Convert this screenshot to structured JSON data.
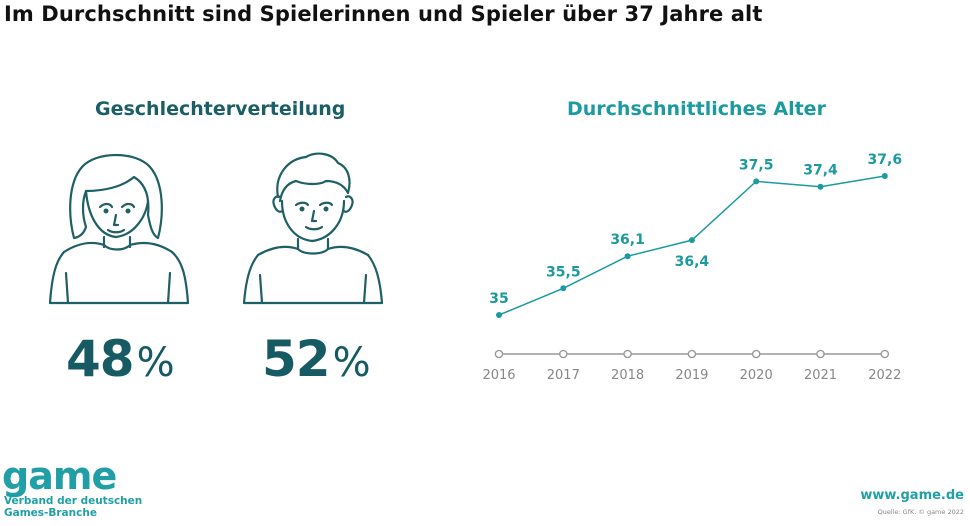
{
  "title": "Im Durchschnitt sind Spielerinnen und Spieler über 37 Jahre alt",
  "gender": {
    "heading": "Geschlechterverteilung",
    "female_value": "48",
    "male_value": "52",
    "percent_sign": "%",
    "icon_color": "#1f5f66"
  },
  "age": {
    "heading": "Durchschnittliches Alter"
  },
  "chart_data": {
    "type": "line",
    "title": "Durchschnittliches Alter",
    "x": [
      "2016",
      "2017",
      "2018",
      "2019",
      "2020",
      "2021",
      "2022"
    ],
    "series": [
      {
        "values": [
          35,
          35.5,
          36.1,
          36.4,
          37.5,
          37.4,
          37.6
        ],
        "labels": [
          "35",
          "35,5",
          "36,1",
          "36,4",
          "37,5",
          "37,4",
          "37,6"
        ]
      }
    ],
    "ylim": [
      35,
      37.6
    ],
    "grid": false,
    "line_color": "#1b9aa0",
    "axis_color": "#999999"
  },
  "footer": {
    "logo": "game",
    "logo_subtitle_1": "Verband der deutschen",
    "logo_subtitle_2": "Games-Branche",
    "website": "www.game.de",
    "source": "Quelle: GfK. © game 2022"
  }
}
